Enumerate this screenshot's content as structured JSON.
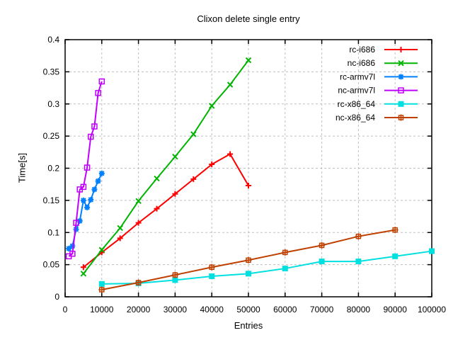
{
  "chart_data": {
    "type": "line",
    "title": "Clixon delete single entry",
    "xlabel": "Entries",
    "ylabel": "Time[s]",
    "xlim": [
      0,
      100000
    ],
    "ylim": [
      0,
      0.4
    ],
    "grid": true,
    "legend_position": "top-right-inside",
    "x_ticks": [
      0,
      10000,
      20000,
      30000,
      40000,
      50000,
      60000,
      70000,
      80000,
      90000,
      100000
    ],
    "x_tick_labels": [
      "0",
      "10000",
      "20000",
      "30000",
      "40000",
      "50000",
      "60000",
      "70000",
      "80000",
      "90000",
      "100000"
    ],
    "y_ticks": [
      0,
      0.05,
      0.1,
      0.15,
      0.2,
      0.25,
      0.3,
      0.35,
      0.4
    ],
    "y_tick_labels": [
      "0",
      "0.05",
      "0.1",
      "0.15",
      "0.2",
      "0.25",
      "0.3",
      "0.35",
      "0.4"
    ],
    "grid_color": "#bfbfbf",
    "frame_color": "#000000",
    "series": [
      {
        "name": "rc-i686",
        "color": "#ff0000",
        "marker": "plus",
        "x": [
          5000,
          10000,
          15000,
          20000,
          25000,
          30000,
          35000,
          40000,
          45000,
          50000
        ],
        "y": [
          0.046,
          0.069,
          0.091,
          0.115,
          0.137,
          0.16,
          0.183,
          0.206,
          0.222,
          0.173
        ]
      },
      {
        "name": "nc-i686",
        "color": "#00b400",
        "marker": "cross",
        "x": [
          5000,
          10000,
          15000,
          20000,
          25000,
          30000,
          35000,
          40000,
          45000,
          50000
        ],
        "y": [
          0.036,
          0.073,
          0.107,
          0.149,
          0.184,
          0.218,
          0.253,
          0.297,
          0.33,
          0.368
        ]
      },
      {
        "name": "rc-armv7l",
        "color": "#0080ff",
        "marker": "asterisk",
        "x": [
          1000,
          2000,
          3000,
          4000,
          5000,
          6000,
          7000,
          8000,
          9000,
          10000
        ],
        "y": [
          0.075,
          0.079,
          0.105,
          0.118,
          0.15,
          0.139,
          0.151,
          0.167,
          0.18,
          0.192
        ]
      },
      {
        "name": "nc-armv7l",
        "color": "#c000ff",
        "marker": "square-open",
        "x": [
          1000,
          2000,
          3000,
          4000,
          5000,
          6000,
          7000,
          8000,
          9000,
          10000
        ],
        "y": [
          0.063,
          0.067,
          0.115,
          0.167,
          0.171,
          0.201,
          0.249,
          0.265,
          0.317,
          0.335
        ]
      },
      {
        "name": "rc-x86_64",
        "color": "#00e0e0",
        "marker": "square-filled",
        "x": [
          10000,
          20000,
          30000,
          40000,
          50000,
          60000,
          70000,
          80000,
          90000,
          100000
        ],
        "y": [
          0.02,
          0.021,
          0.026,
          0.032,
          0.036,
          0.044,
          0.055,
          0.055,
          0.063,
          0.071
        ]
      },
      {
        "name": "nc-x86_64",
        "color": "#c04000",
        "marker": "square-plus",
        "x": [
          10000,
          20000,
          30000,
          40000,
          50000,
          60000,
          70000,
          80000,
          90000
        ],
        "y": [
          0.011,
          0.022,
          0.034,
          0.046,
          0.057,
          0.069,
          0.08,
          0.094,
          0.104
        ]
      }
    ]
  }
}
